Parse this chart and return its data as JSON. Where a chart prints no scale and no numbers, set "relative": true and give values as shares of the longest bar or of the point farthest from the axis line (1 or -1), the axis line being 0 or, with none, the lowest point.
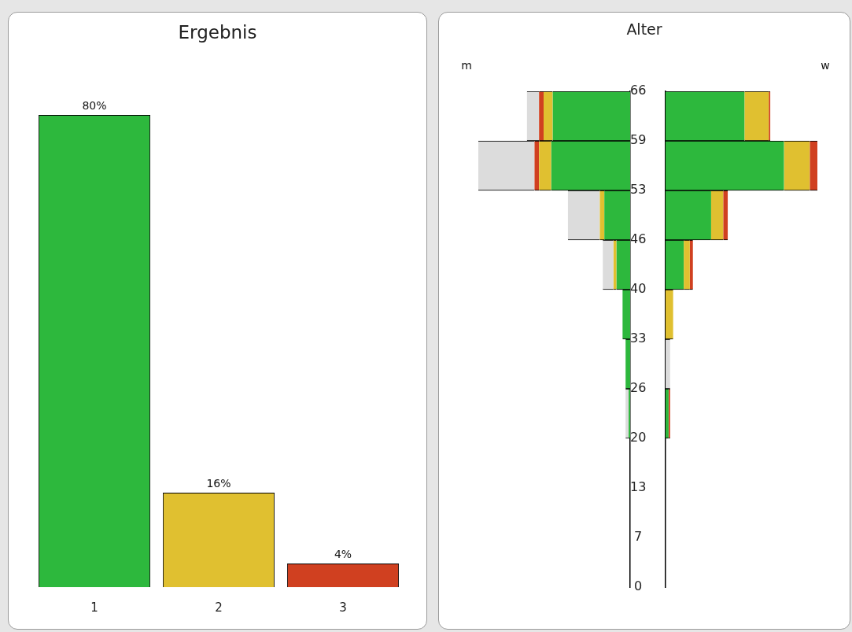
{
  "chart_data": [
    {
      "type": "bar",
      "title": "Ergebnis",
      "categories": [
        "1",
        "2",
        "3"
      ],
      "values": [
        80,
        16,
        4
      ],
      "value_labels": [
        "80%",
        "16%",
        "4%"
      ],
      "colors": [
        "#2db83d",
        "#e0c030",
        "#d04020"
      ]
    },
    {
      "type": "bar",
      "title": "Alter",
      "orientation": "horizontal",
      "stacked": true,
      "relative": true,
      "tick_labels": "y",
      "annotations": [
        "m"
      ],
      "x": [
        62.7,
        56.1,
        49.5,
        42.9,
        36.3,
        29.7,
        23.1
      ],
      "ylim": [
        0,
        66
      ],
      "yticks": [
        0,
        {
          "value": 6.6,
          "label": "7"
        },
        {
          "value": 13.2,
          "label": "13"
        },
        {
          "value": 19.8,
          "label": "20"
        },
        {
          "value": 26.4,
          "label": "26"
        },
        33,
        {
          "value": 39.6,
          "label": "40"
        },
        {
          "value": 46.2,
          "label": "46"
        },
        {
          "value": 52.8,
          "label": "53"
        },
        {
          "value": 59.4,
          "label": "59"
        },
        66
      ],
      "series": [
        {
          "color": "#2db83d",
          "values": [
            -0.51,
            -0.52,
            -0.17,
            -0.09,
            -0.05,
            -0.03,
            -0.01
          ]
        },
        {
          "color": "#e0c030",
          "values": [
            -0.06,
            -0.08,
            -0.03,
            -0.02,
            null,
            null,
            null
          ]
        },
        {
          "color": "#d04020",
          "values": [
            -0.03,
            -0.03,
            null,
            null,
            null,
            null,
            null
          ]
        },
        {
          "color": "#dcdcdc",
          "values": [
            -0.08,
            -0.37,
            -0.21,
            -0.07,
            null,
            null,
            -0.02
          ]
        }
      ]
    },
    {
      "type": "bar",
      "orientation": "horizontal",
      "stacked": true,
      "relative": true,
      "tick_labels": false,
      "annotations": [
        "w"
      ],
      "x": [
        62.7,
        56.1,
        49.5,
        42.9,
        36.3,
        29.7,
        23.1
      ],
      "ylim": [
        0,
        66
      ],
      "series": [
        {
          "color": "#2db83d",
          "values": [
            0.52,
            0.78,
            0.3,
            0.12,
            null,
            null,
            0.02
          ]
        },
        {
          "color": "#e0c030",
          "values": [
            0.16,
            0.17,
            0.08,
            0.04,
            0.05,
            null,
            null
          ]
        },
        {
          "color": "#d04020",
          "values": [
            0.01,
            0.05,
            0.03,
            0.02,
            null,
            null,
            0.01
          ]
        },
        {
          "color": "#dcdcdc",
          "values": [
            null,
            null,
            null,
            null,
            null,
            0.03,
            null
          ]
        }
      ]
    }
  ]
}
